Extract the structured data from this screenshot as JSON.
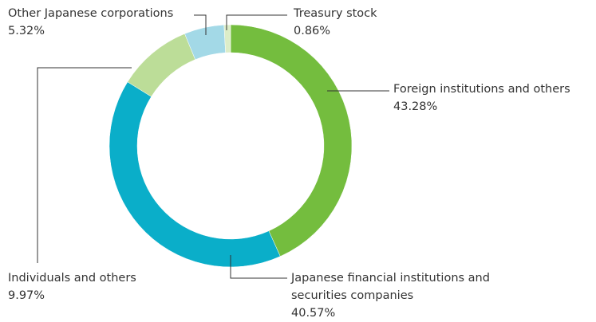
{
  "chart_data": {
    "type": "donut",
    "categories": [
      "Foreign institutions and others",
      "Japanese financial institutions and securities companies",
      "Individuals and others",
      "Other Japanese corporations",
      "Treasury stock"
    ],
    "values": [
      43.28,
      40.57,
      9.97,
      5.32,
      0.86
    ],
    "value_labels": [
      "43.28%",
      "40.57%",
      "9.97%",
      "5.32%",
      "0.86%"
    ],
    "colors": [
      "#74bd3e",
      "#0aaec9",
      "#bcdd98",
      "#a3d9e7",
      "#dcedc8"
    ]
  }
}
